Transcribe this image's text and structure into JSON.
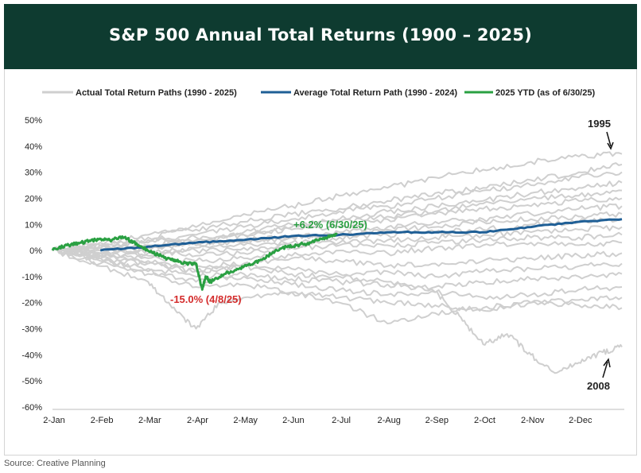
{
  "header": {
    "title": "S&P 500 Annual Total Returns (1900 – 2025)"
  },
  "source": "Source: Creative Planning",
  "colors": {
    "banner": "#0e3b30",
    "paths": "#cfcfcf",
    "average": "#1f5f96",
    "ytd": "#2aa042",
    "low_label": "#d42b2b"
  },
  "chart_data": {
    "type": "line",
    "title": "S&P 500 Annual Total Returns (1900 – 2025)",
    "y_unit": "%",
    "ylim": [
      -60,
      50
    ],
    "y_ticks": [
      {
        "value": 50,
        "label": "50%"
      },
      {
        "value": 40,
        "label": "40%"
      },
      {
        "value": 30,
        "label": "30%"
      },
      {
        "value": 20,
        "label": "20%"
      },
      {
        "value": 10,
        "label": "10%"
      },
      {
        "value": 0,
        "label": "0%"
      },
      {
        "value": -10,
        "label": "-10%"
      },
      {
        "value": -20,
        "label": "-20%"
      },
      {
        "value": -30,
        "label": "-30%"
      },
      {
        "value": -40,
        "label": "-40%"
      },
      {
        "value": -50,
        "label": "-50%"
      },
      {
        "value": -60,
        "label": "-60%"
      }
    ],
    "x_range_months": [
      0,
      11.95
    ],
    "x_ticks": [
      {
        "value": 0,
        "label": "2-Jan"
      },
      {
        "value": 1,
        "label": "2-Feb"
      },
      {
        "value": 2,
        "label": "2-Mar"
      },
      {
        "value": 3,
        "label": "2-Apr"
      },
      {
        "value": 4,
        "label": "2-May"
      },
      {
        "value": 5,
        "label": "2-Jun"
      },
      {
        "value": 6,
        "label": "2-Jul"
      },
      {
        "value": 7,
        "label": "2-Aug"
      },
      {
        "value": 8,
        "label": "2-Sep"
      },
      {
        "value": 9,
        "label": "2-Oct"
      },
      {
        "value": 10,
        "label": "2-Nov"
      },
      {
        "value": 11,
        "label": "2-Dec"
      }
    ],
    "legend": [
      {
        "label": "Actual Total Return Paths (1990 - 2025)",
        "color": "#cfcfcf"
      },
      {
        "label": "Average Total Return Path (1990 - 2024)",
        "color": "#1f5f96"
      },
      {
        "label": "2025 YTD (as of 6/30/25)",
        "color": "#2aa042"
      }
    ],
    "series": [
      {
        "name": "Actual Total Return Paths (1990 - 2025)",
        "kind": "paths",
        "color": "#cfcfcf",
        "paths": [
          {
            "x": [
              0,
              1,
              2,
              3,
              4,
              5,
              6,
              7,
              8,
              9,
              10,
              11,
              11.9
            ],
            "y": [
              0,
              2,
              5,
              9,
              14,
              17,
              21,
              24,
              28,
              31,
              34,
              36,
              37
            ]
          },
          {
            "x": [
              0,
              1,
              2,
              3,
              4,
              5,
              6,
              7,
              8,
              9,
              10,
              11,
              11.9
            ],
            "y": [
              0,
              3,
              6,
              8,
              11,
              14,
              16,
              19,
              22,
              24,
              27,
              30,
              33
            ]
          },
          {
            "x": [
              0,
              1,
              2,
              3,
              4,
              5,
              6,
              7,
              8,
              9,
              10,
              11,
              11.9
            ],
            "y": [
              0,
              1,
              4,
              6,
              9,
              12,
              15,
              17,
              20,
              23,
              25,
              28,
              30
            ]
          },
          {
            "x": [
              0,
              1,
              2,
              3,
              4,
              5,
              6,
              7,
              8,
              9,
              10,
              11,
              11.9
            ],
            "y": [
              0,
              2,
              3,
              5,
              7,
              10,
              12,
              15,
              17,
              19,
              22,
              24,
              26
            ]
          },
          {
            "x": [
              0,
              1,
              2,
              3,
              4,
              5,
              6,
              7,
              8,
              9,
              10,
              11,
              11.9
            ],
            "y": [
              0,
              -1,
              2,
              4,
              6,
              9,
              11,
              13,
              15,
              18,
              20,
              21,
              23
            ]
          },
          {
            "x": [
              0,
              1,
              2,
              3,
              4,
              5,
              6,
              7,
              8,
              9,
              10,
              11,
              11.9
            ],
            "y": [
              0,
              1,
              2,
              3,
              6,
              8,
              9,
              12,
              14,
              16,
              17,
              19,
              20
            ]
          },
          {
            "x": [
              0,
              1,
              2,
              3,
              4,
              5,
              6,
              7,
              8,
              9,
              10,
              11,
              11.9
            ],
            "y": [
              0,
              0,
              1,
              2,
              4,
              5,
              7,
              9,
              11,
              12,
              14,
              16,
              17
            ]
          },
          {
            "x": [
              0,
              1,
              2,
              3,
              4,
              5,
              6,
              7,
              8,
              9,
              10,
              11,
              11.9
            ],
            "y": [
              0,
              2,
              1,
              3,
              3,
              5,
              6,
              8,
              9,
              11,
              12,
              13,
              14
            ]
          },
          {
            "x": [
              0,
              1,
              2,
              3,
              4,
              5,
              6,
              7,
              8,
              9,
              10,
              11,
              11.9
            ],
            "y": [
              0,
              -2,
              -1,
              1,
              2,
              3,
              5,
              6,
              7,
              8,
              10,
              11,
              12
            ]
          },
          {
            "x": [
              0,
              1,
              2,
              3,
              4,
              5,
              6,
              7,
              8,
              9,
              10,
              11,
              11.9
            ],
            "y": [
              0,
              1,
              -2,
              0,
              1,
              2,
              3,
              4,
              5,
              6,
              7,
              8,
              9
            ]
          },
          {
            "x": [
              0,
              1,
              2,
              3,
              4,
              5,
              6,
              7,
              8,
              9,
              10,
              11,
              11.9
            ],
            "y": [
              0,
              -1,
              0,
              -2,
              -1,
              1,
              2,
              2,
              3,
              4,
              5,
              5,
              6
            ]
          },
          {
            "x": [
              0,
              1,
              2,
              3,
              4,
              5,
              6,
              7,
              8,
              9,
              10,
              11,
              11.9
            ],
            "y": [
              0,
              -2,
              -3,
              -4,
              -3,
              -2,
              0,
              -1,
              1,
              2,
              3,
              2,
              3
            ]
          },
          {
            "x": [
              0,
              1,
              2,
              3,
              4,
              5,
              6,
              7,
              8,
              9,
              10,
              11,
              11.9
            ],
            "y": [
              0,
              -1,
              -4,
              -6,
              -5,
              -3,
              -4,
              -6,
              -5,
              -4,
              -3,
              -2,
              -1
            ]
          },
          {
            "x": [
              0,
              1,
              2,
              3,
              4,
              5,
              6,
              7,
              8,
              9,
              10,
              11,
              11.9
            ],
            "y": [
              0,
              -3,
              -5,
              -8,
              -6,
              -7,
              -9,
              -8,
              -10,
              -8,
              -7,
              -6,
              -5
            ]
          },
          {
            "x": [
              0,
              1,
              2,
              3,
              4,
              5,
              6,
              7,
              8,
              9,
              10,
              11,
              11.9
            ],
            "y": [
              0,
              -4,
              -7,
              -10,
              -9,
              -11,
              -12,
              -13,
              -14,
              -12,
              -11,
              -10,
              -9
            ]
          },
          {
            "x": [
              0,
              1,
              2,
              3,
              4,
              5,
              6,
              7,
              8,
              9,
              10,
              11,
              11.9
            ],
            "y": [
              0,
              -3,
              -8,
              -12,
              -10,
              -13,
              -15,
              -17,
              -16,
              -18,
              -17,
              -15,
              -14
            ]
          },
          {
            "x": [
              0,
              1,
              2,
              3,
              4,
              5,
              6,
              7,
              8,
              9,
              10,
              11,
              11.9
            ],
            "y": [
              0,
              -5,
              -9,
              -14,
              -13,
              -16,
              -18,
              -20,
              -21,
              -23,
              -20,
              -21,
              -22
            ]
          },
          {
            "x": [
              0,
              1,
              2,
              2.5,
              3,
              3.5,
              4,
              5,
              6,
              7,
              8,
              9,
              10,
              11,
              11.9
            ],
            "y": [
              0,
              -6,
              -12,
              -22,
              -30,
              -20,
              -18,
              -16,
              -20,
              -28,
              -24,
              -22,
              -20,
              -19,
              -18
            ]
          },
          {
            "x": [
              0,
              1,
              2,
              3,
              4,
              5,
              6,
              7,
              8,
              8.5,
              9,
              9.5,
              10,
              10.5,
              11,
              11.5,
              11.9
            ],
            "y": [
              0,
              -2,
              -5,
              -8,
              -6,
              -9,
              -10,
              -12,
              -16,
              -25,
              -36,
              -32,
              -40,
              -47,
              -43,
              -39,
              -37
            ]
          }
        ]
      },
      {
        "name": "Average Total Return Path (1990 - 2024)",
        "kind": "line",
        "color": "#1f5f96",
        "x": [
          1,
          2,
          3,
          4,
          5,
          6,
          7,
          8,
          9,
          10,
          11,
          11.9
        ],
        "y": [
          0,
          1.5,
          3,
          4,
          5.5,
          6,
          7,
          7,
          7,
          9,
          11,
          12
        ]
      },
      {
        "name": "2025 YTD (as of 6/30/25)",
        "kind": "line",
        "color": "#2aa042",
        "x": [
          0,
          0.3,
          0.6,
          0.9,
          1.2,
          1.5,
          1.8,
          2.1,
          2.4,
          2.6,
          2.8,
          3.0,
          3.13,
          3.2,
          3.3,
          3.6,
          3.9,
          4.2,
          4.5,
          4.8,
          5.1,
          5.4,
          5.7,
          5.95
        ],
        "y": [
          0,
          2,
          3,
          4,
          4,
          5,
          2,
          -1,
          -3,
          -4,
          -5,
          -5,
          -15,
          -10,
          -12,
          -9,
          -7,
          -5,
          -2,
          1,
          2,
          3,
          5,
          6.2
        ]
      }
    ],
    "annotations": [
      {
        "text": "1995",
        "x": 11.6,
        "y": 47
      },
      {
        "text": "2008",
        "x": 11.6,
        "y": -52
      },
      {
        "text": "+6.2% (6/30/25)",
        "x": 5.8,
        "y": 10
      },
      {
        "text": "-15.0% (4/8/25)",
        "x": 3.6,
        "y": -19
      }
    ]
  }
}
